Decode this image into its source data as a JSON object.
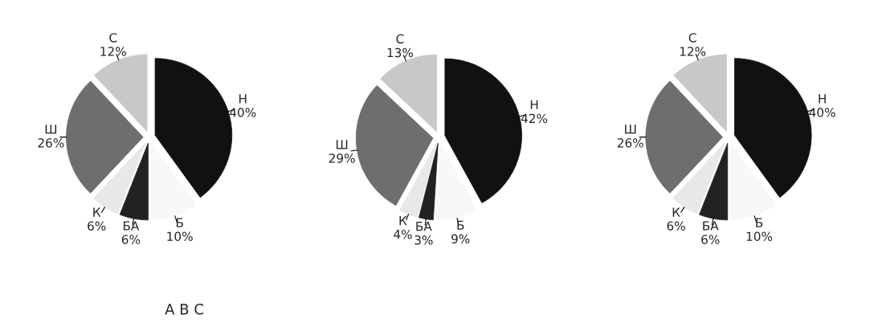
{
  "chart_data": [
    {
      "type": "pie",
      "categories": [
        "Н",
        "Б",
        "БА",
        "К",
        "Ш",
        "С"
      ],
      "values": [
        40,
        10,
        6,
        6,
        26,
        12
      ],
      "value_labels": [
        "40%",
        "10%",
        "6%",
        "6%",
        "26%",
        "12%"
      ],
      "colors": [
        "#111111",
        "#f8f8f8",
        "#222222",
        "#e8e8e8",
        "#6e6e6e",
        "#c8c8c8"
      ],
      "annotations": [
        "A B C"
      ]
    },
    {
      "type": "pie",
      "categories": [
        "Н",
        "Б",
        "БА",
        "К",
        "Ш",
        "С"
      ],
      "values": [
        42,
        9,
        3,
        4,
        29,
        13
      ],
      "value_labels": [
        "42%",
        "9%",
        "3%",
        "4%",
        "29%",
        "13%"
      ],
      "colors": [
        "#111111",
        "#f8f8f8",
        "#222222",
        "#e8e8e8",
        "#6e6e6e",
        "#c8c8c8"
      ]
    },
    {
      "type": "pie",
      "categories": [
        "Н",
        "Б",
        "БА",
        "К",
        "Ш",
        "С"
      ],
      "values": [
        40,
        10,
        6,
        6,
        26,
        12
      ],
      "value_labels": [
        "40%",
        "10%",
        "6%",
        "6%",
        "26%",
        "12%"
      ],
      "colors": [
        "#111111",
        "#f8f8f8",
        "#222222",
        "#e8e8e8",
        "#6e6e6e",
        "#c8c8c8"
      ]
    }
  ]
}
